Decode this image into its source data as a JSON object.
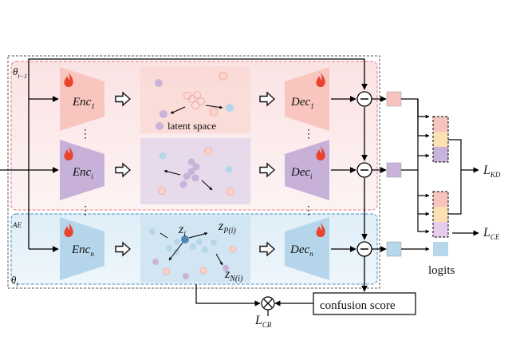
{
  "theta_top": {
    "main": "θ",
    "sub": "t−1"
  },
  "theta_bottom": {
    "main": "θ",
    "sub": "t"
  },
  "ae_label": "AE",
  "encoders": [
    {
      "main": "Enc",
      "sub": "1"
    },
    {
      "main": "Enc",
      "sub": "i"
    },
    {
      "main": "Enc",
      "sub": "n"
    }
  ],
  "decoders": [
    {
      "main": "Dec",
      "sub": "1"
    },
    {
      "main": "Dec",
      "sub": "i"
    },
    {
      "main": "Dec",
      "sub": "n"
    }
  ],
  "latent_label": "latent space",
  "z_labels": {
    "zi": {
      "main": "z",
      "sub": "i"
    },
    "zp": {
      "main": "z",
      "sub": "P(i)"
    },
    "zn": {
      "main": "z",
      "sub": "N(i)"
    }
  },
  "loss_kd": {
    "main": "L",
    "sub": "KD"
  },
  "loss_ce": {
    "main": "L",
    "sub": "CE"
  },
  "loss_cr": {
    "main": "L",
    "sub": "CR"
  },
  "logits_label": "logits",
  "confusion_label": "confusion score",
  "vdots": "⋮",
  "colors": {
    "pink": "#f6c3bf",
    "purple": "#c9b3da",
    "blue": "#b6d6ea",
    "yellow": "#fbe0b3",
    "flame": "#e8442f"
  }
}
